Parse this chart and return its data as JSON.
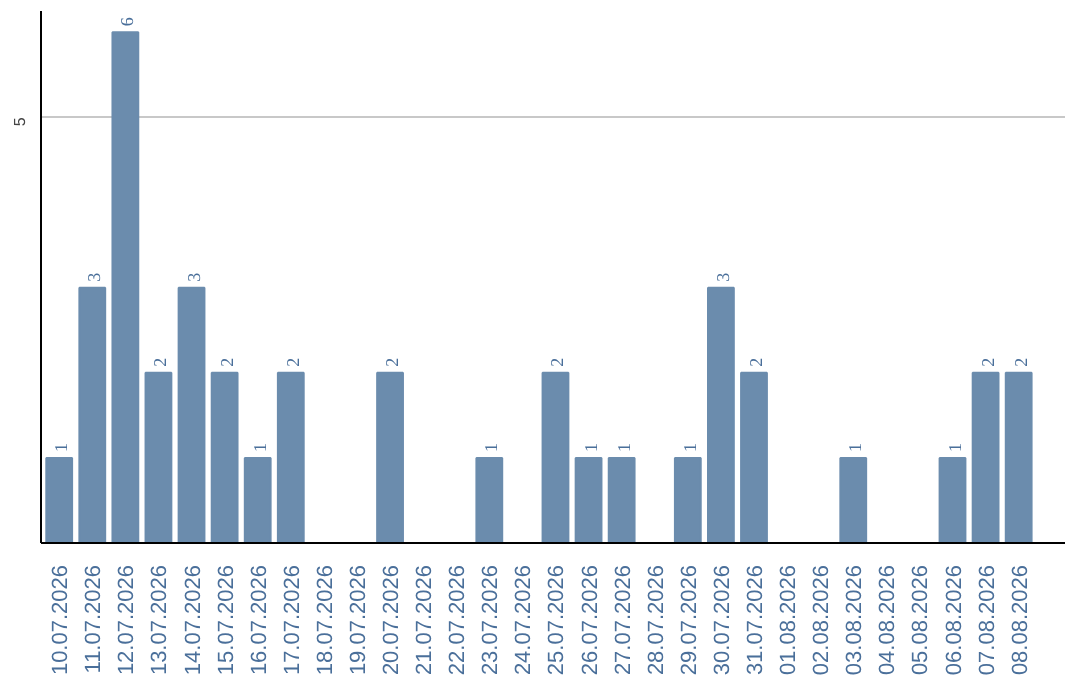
{
  "chart_data": {
    "type": "bar",
    "categories": [
      "10.07.2026",
      "11.07.2026",
      "12.07.2026",
      "13.07.2026",
      "14.07.2026",
      "15.07.2026",
      "16.07.2026",
      "17.07.2026",
      "18.07.2026",
      "19.07.2026",
      "20.07.2026",
      "21.07.2026",
      "22.07.2026",
      "23.07.2026",
      "24.07.2026",
      "25.07.2026",
      "26.07.2026",
      "27.07.2026",
      "28.07.2026",
      "29.07.2026",
      "30.07.2026",
      "31.07.2026",
      "01.08.2026",
      "02.08.2026",
      "03.08.2026",
      "04.08.2026",
      "05.08.2026",
      "06.08.2026",
      "07.08.2026",
      "08.08.2026"
    ],
    "values": [
      1,
      3,
      6,
      2,
      3,
      2,
      1,
      2,
      null,
      null,
      2,
      null,
      null,
      1,
      null,
      2,
      1,
      1,
      null,
      1,
      3,
      2,
      null,
      null,
      1,
      null,
      null,
      1,
      2,
      2
    ],
    "color": "#6b8cad",
    "ylim": [
      0,
      6.25
    ],
    "yticks": [
      5
    ],
    "grid": "y",
    "data_labels": true
  }
}
